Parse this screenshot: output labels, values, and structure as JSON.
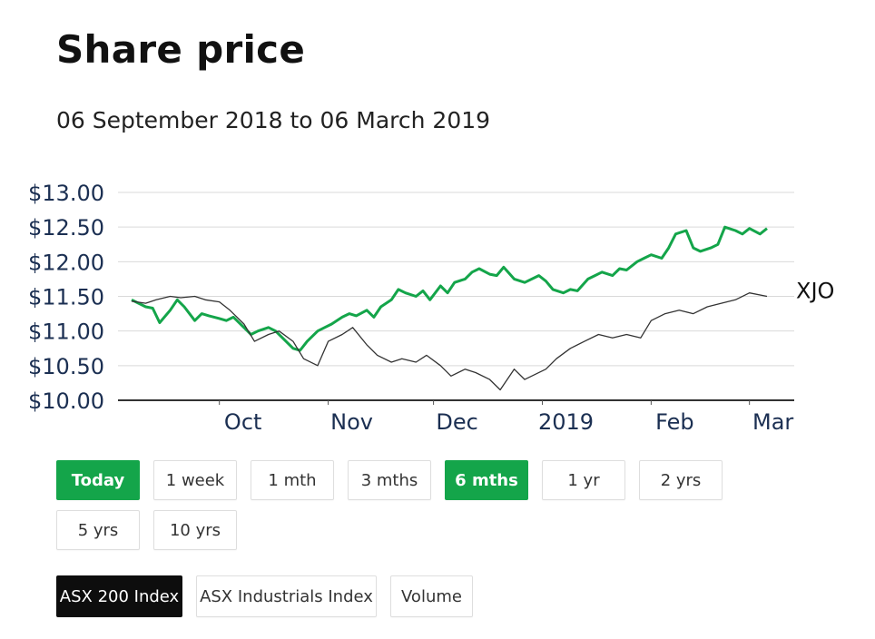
{
  "header": {
    "title": "Share price",
    "subtitle": "06 September 2018 to 06 March 2019"
  },
  "periods": [
    {
      "label": "Today",
      "active": true
    },
    {
      "label": "1 week",
      "active": false
    },
    {
      "label": "1 mth",
      "active": false
    },
    {
      "label": "3 mths",
      "active": false
    },
    {
      "label": "6 mths",
      "active": true
    },
    {
      "label": "1 yr",
      "active": false
    },
    {
      "label": "2 yrs",
      "active": false
    },
    {
      "label": "5 yrs",
      "active": false
    },
    {
      "label": "10 yrs",
      "active": false
    }
  ],
  "compare": [
    {
      "label": "ASX 200 Index",
      "active": true
    },
    {
      "label": "ASX Industrials Index",
      "active": false
    },
    {
      "label": "Volume",
      "active": false
    }
  ],
  "colors": {
    "accent": "#14a54a",
    "index_line": "#333333",
    "grid": "#d9d9d9",
    "axis_text": "#1b2f52"
  },
  "chart_data": {
    "type": "line",
    "title": "Share price",
    "subtitle": "06 September 2018 to 06 March 2019",
    "ylim": [
      10.0,
      13.0
    ],
    "y_ticks": [
      "$10.00",
      "$10.50",
      "$11.00",
      "$11.50",
      "$12.00",
      "$12.50",
      "$13.00"
    ],
    "y_tick_values": [
      10.0,
      10.5,
      11.0,
      11.5,
      12.0,
      12.5,
      13.0
    ],
    "x_ticks": [
      {
        "label": "Oct",
        "date": "2018-10-01"
      },
      {
        "label": "Nov",
        "date": "2018-11-01"
      },
      {
        "label": "Dec",
        "date": "2018-12-01"
      },
      {
        "label": "2019",
        "date": "2019-01-01"
      },
      {
        "label": "Feb",
        "date": "2019-02-01"
      },
      {
        "label": "Mar",
        "date": "2019-03-01"
      }
    ],
    "grid": true,
    "series": [
      {
        "name": "",
        "color": "#14a54a",
        "points": [
          [
            "2018-09-06",
            11.45
          ],
          [
            "2018-09-08",
            11.4
          ],
          [
            "2018-09-10",
            11.35
          ],
          [
            "2018-09-12",
            11.33
          ],
          [
            "2018-09-14",
            11.12
          ],
          [
            "2018-09-17",
            11.3
          ],
          [
            "2018-09-19",
            11.45
          ],
          [
            "2018-09-21",
            11.35
          ],
          [
            "2018-09-24",
            11.15
          ],
          [
            "2018-09-26",
            11.25
          ],
          [
            "2018-09-28",
            11.22
          ],
          [
            "2018-10-01",
            11.18
          ],
          [
            "2018-10-03",
            11.15
          ],
          [
            "2018-10-05",
            11.2
          ],
          [
            "2018-10-08",
            11.05
          ],
          [
            "2018-10-10",
            10.95
          ],
          [
            "2018-10-12",
            11.0
          ],
          [
            "2018-10-15",
            11.05
          ],
          [
            "2018-10-17",
            11.0
          ],
          [
            "2018-10-19",
            10.9
          ],
          [
            "2018-10-22",
            10.75
          ],
          [
            "2018-10-24",
            10.72
          ],
          [
            "2018-10-26",
            10.85
          ],
          [
            "2018-10-29",
            11.0
          ],
          [
            "2018-10-31",
            11.05
          ],
          [
            "2018-11-02",
            11.1
          ],
          [
            "2018-11-05",
            11.2
          ],
          [
            "2018-11-07",
            11.25
          ],
          [
            "2018-11-09",
            11.22
          ],
          [
            "2018-11-12",
            11.3
          ],
          [
            "2018-11-14",
            11.2
          ],
          [
            "2018-11-16",
            11.35
          ],
          [
            "2018-11-19",
            11.45
          ],
          [
            "2018-11-21",
            11.6
          ],
          [
            "2018-11-23",
            11.55
          ],
          [
            "2018-11-26",
            11.5
          ],
          [
            "2018-11-28",
            11.58
          ],
          [
            "2018-11-30",
            11.45
          ],
          [
            "2018-12-03",
            11.65
          ],
          [
            "2018-12-05",
            11.55
          ],
          [
            "2018-12-07",
            11.7
          ],
          [
            "2018-12-10",
            11.75
          ],
          [
            "2018-12-12",
            11.85
          ],
          [
            "2018-12-14",
            11.9
          ],
          [
            "2018-12-17",
            11.82
          ],
          [
            "2018-12-19",
            11.8
          ],
          [
            "2018-12-21",
            11.92
          ],
          [
            "2018-12-24",
            11.75
          ],
          [
            "2018-12-27",
            11.7
          ],
          [
            "2018-12-31",
            11.8
          ],
          [
            "2019-01-02",
            11.72
          ],
          [
            "2019-01-04",
            11.6
          ],
          [
            "2019-01-07",
            11.55
          ],
          [
            "2019-01-09",
            11.6
          ],
          [
            "2019-01-11",
            11.58
          ],
          [
            "2019-01-14",
            11.75
          ],
          [
            "2019-01-16",
            11.8
          ],
          [
            "2019-01-18",
            11.85
          ],
          [
            "2019-01-21",
            11.8
          ],
          [
            "2019-01-23",
            11.9
          ],
          [
            "2019-01-25",
            11.88
          ],
          [
            "2019-01-28",
            12.0
          ],
          [
            "2019-01-30",
            12.05
          ],
          [
            "2019-02-01",
            12.1
          ],
          [
            "2019-02-04",
            12.05
          ],
          [
            "2019-02-06",
            12.2
          ],
          [
            "2019-02-08",
            12.4
          ],
          [
            "2019-02-11",
            12.45
          ],
          [
            "2019-02-13",
            12.2
          ],
          [
            "2019-02-15",
            12.15
          ],
          [
            "2019-02-18",
            12.2
          ],
          [
            "2019-02-20",
            12.25
          ],
          [
            "2019-02-22",
            12.5
          ],
          [
            "2019-02-25",
            12.45
          ],
          [
            "2019-02-27",
            12.4
          ],
          [
            "2019-03-01",
            12.48
          ],
          [
            "2019-03-04",
            12.4
          ],
          [
            "2019-03-06",
            12.48
          ]
        ]
      },
      {
        "name": "XJO",
        "color": "#333333",
        "points": [
          [
            "2018-09-06",
            11.43
          ],
          [
            "2018-09-10",
            11.4
          ],
          [
            "2018-09-13",
            11.45
          ],
          [
            "2018-09-17",
            11.5
          ],
          [
            "2018-09-20",
            11.48
          ],
          [
            "2018-09-24",
            11.5
          ],
          [
            "2018-09-27",
            11.45
          ],
          [
            "2018-10-01",
            11.42
          ],
          [
            "2018-10-04",
            11.3
          ],
          [
            "2018-10-08",
            11.1
          ],
          [
            "2018-10-11",
            10.85
          ],
          [
            "2018-10-15",
            10.95
          ],
          [
            "2018-10-18",
            11.0
          ],
          [
            "2018-10-22",
            10.85
          ],
          [
            "2018-10-25",
            10.6
          ],
          [
            "2018-10-29",
            10.5
          ],
          [
            "2018-11-01",
            10.85
          ],
          [
            "2018-11-05",
            10.95
          ],
          [
            "2018-11-08",
            11.05
          ],
          [
            "2018-11-12",
            10.8
          ],
          [
            "2018-11-15",
            10.65
          ],
          [
            "2018-11-19",
            10.55
          ],
          [
            "2018-11-22",
            10.6
          ],
          [
            "2018-11-26",
            10.55
          ],
          [
            "2018-11-29",
            10.65
          ],
          [
            "2018-12-03",
            10.5
          ],
          [
            "2018-12-06",
            10.35
          ],
          [
            "2018-12-10",
            10.45
          ],
          [
            "2018-12-13",
            10.4
          ],
          [
            "2018-12-17",
            10.3
          ],
          [
            "2018-12-20",
            10.15
          ],
          [
            "2018-12-24",
            10.45
          ],
          [
            "2018-12-27",
            10.3
          ],
          [
            "2019-01-02",
            10.45
          ],
          [
            "2019-01-05",
            10.6
          ],
          [
            "2019-01-09",
            10.75
          ],
          [
            "2019-01-13",
            10.85
          ],
          [
            "2019-01-17",
            10.95
          ],
          [
            "2019-01-21",
            10.9
          ],
          [
            "2019-01-25",
            10.95
          ],
          [
            "2019-01-29",
            10.9
          ],
          [
            "2019-02-01",
            11.15
          ],
          [
            "2019-02-05",
            11.25
          ],
          [
            "2019-02-09",
            11.3
          ],
          [
            "2019-02-13",
            11.25
          ],
          [
            "2019-02-17",
            11.35
          ],
          [
            "2019-02-21",
            11.4
          ],
          [
            "2019-02-25",
            11.45
          ],
          [
            "2019-03-01",
            11.55
          ],
          [
            "2019-03-06",
            11.5
          ]
        ]
      }
    ],
    "series_label": "XJO"
  }
}
